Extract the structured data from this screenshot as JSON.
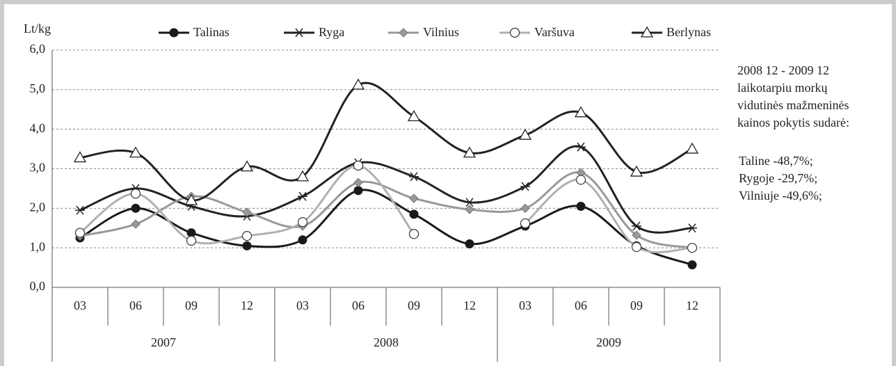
{
  "chart_data": {
    "type": "line",
    "y_label": "Lt/kg",
    "categories": [
      "03",
      "06",
      "09",
      "12",
      "03",
      "06",
      "09",
      "12",
      "03",
      "06",
      "09",
      "12"
    ],
    "years": [
      "2007",
      "2008",
      "2009"
    ],
    "ylim": [
      0,
      6
    ],
    "yticks": [
      {
        "value": 0,
        "label": "0,0"
      },
      {
        "value": 1,
        "label": "1,0"
      },
      {
        "value": 2,
        "label": "2,0"
      },
      {
        "value": 3,
        "label": "3,0"
      },
      {
        "value": 4,
        "label": "4,0"
      },
      {
        "value": 5,
        "label": "5,0"
      },
      {
        "value": 6,
        "label": "6,0"
      }
    ],
    "grid": true,
    "series": [
      {
        "name": "Talinas",
        "color": "#1a1a1a",
        "marker": "filled-circle",
        "values": [
          1.25,
          2.0,
          1.38,
          1.05,
          1.2,
          2.45,
          1.85,
          1.1,
          1.55,
          2.05,
          1.05,
          0.57
        ]
      },
      {
        "name": "Ryga",
        "color": "#222222",
        "marker": "star",
        "values": [
          1.95,
          2.5,
          2.05,
          1.8,
          2.3,
          3.15,
          2.8,
          2.15,
          2.55,
          3.55,
          1.55,
          1.5
        ]
      },
      {
        "name": "Vilnius",
        "color": "#999999",
        "marker": "diamond",
        "values": [
          1.3,
          1.6,
          2.3,
          1.9,
          1.55,
          2.65,
          2.25,
          1.97,
          2.0,
          2.9,
          1.32,
          1.0
        ]
      },
      {
        "name": "Varšuva",
        "color": "#b0b0b0",
        "marker": "open-circle",
        "values": [
          1.38,
          2.37,
          1.18,
          1.3,
          1.65,
          3.08,
          1.35,
          null,
          1.62,
          2.72,
          1.02,
          1.0
        ]
      },
      {
        "name": "Berlynas",
        "color": "#222222",
        "marker": "triangle",
        "values": [
          3.28,
          3.4,
          2.2,
          3.05,
          2.8,
          5.12,
          4.32,
          3.4,
          3.85,
          4.42,
          2.92,
          3.5
        ]
      }
    ],
    "annotation": [
      "2008 12 - 2009 12",
      "laikotarpiu morkų",
      "vidutinės mažmeninės",
      "kainos pokytis sudarė:"
    ],
    "annotation_values": [
      "Taline -48,7%;",
      "Rygoje -29,7%;",
      "Vilniuje -49,6%;"
    ]
  }
}
